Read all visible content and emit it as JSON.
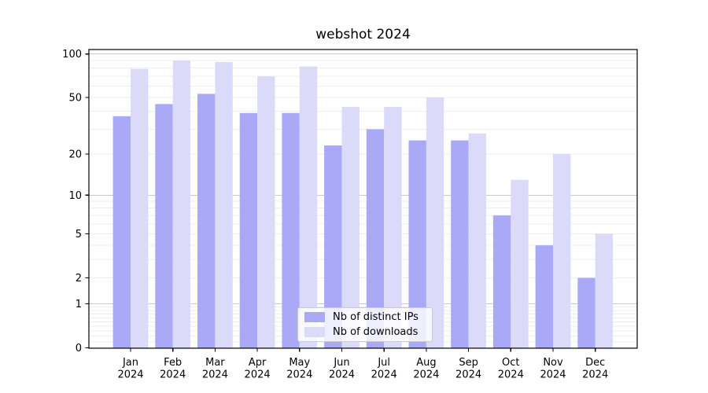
{
  "title": "webshot 2024",
  "chart_data": {
    "type": "bar",
    "title": "webshot 2024",
    "categories": [
      "Jan",
      "Feb",
      "Mar",
      "Apr",
      "May",
      "Jun",
      "Jul",
      "Aug",
      "Sep",
      "Oct",
      "Nov",
      "Dec"
    ],
    "x_year": "2024",
    "series": [
      {
        "name": "Nb of distinct IPs",
        "color": "#aaa9f7",
        "values": [
          37,
          45,
          53,
          39,
          39,
          23,
          30,
          25,
          25,
          7,
          4,
          2
        ]
      },
      {
        "name": "Nb of downloads",
        "color": "#dbdaf9",
        "values": [
          79,
          90,
          88,
          70,
          82,
          43,
          43,
          50,
          28,
          13,
          20,
          5
        ]
      }
    ],
    "xlabel": "",
    "ylabel": "",
    "yscale": "symlog (position proportional to log10(1+value))",
    "y_ticks": [
      0,
      1,
      2,
      5,
      10,
      20,
      50,
      100
    ],
    "y_minor_gridlines": [
      0.1,
      0.2,
      0.3,
      0.4,
      0.5,
      0.6,
      0.7,
      0.8,
      0.9,
      2,
      3,
      4,
      5,
      6,
      7,
      8,
      9,
      20,
      30,
      40,
      50,
      60,
      70,
      80,
      90
    ],
    "y_major_gridlines": [
      1,
      10,
      100
    ],
    "ylim": [
      0,
      107
    ],
    "grid": "horizontal, on",
    "legend_position": "inside bottom-center",
    "colors": {
      "bar_ips": "#aaa9f7",
      "bar_downloads": "#dbdaf9",
      "grid_major": "#c9c9c9",
      "grid_minor": "#ededed",
      "axis": "#000000",
      "text": "#000000",
      "legend_border": "#cccccc"
    }
  },
  "legend": {
    "items": [
      {
        "label": "Nb of distinct IPs"
      },
      {
        "label": "Nb of downloads"
      }
    ]
  }
}
